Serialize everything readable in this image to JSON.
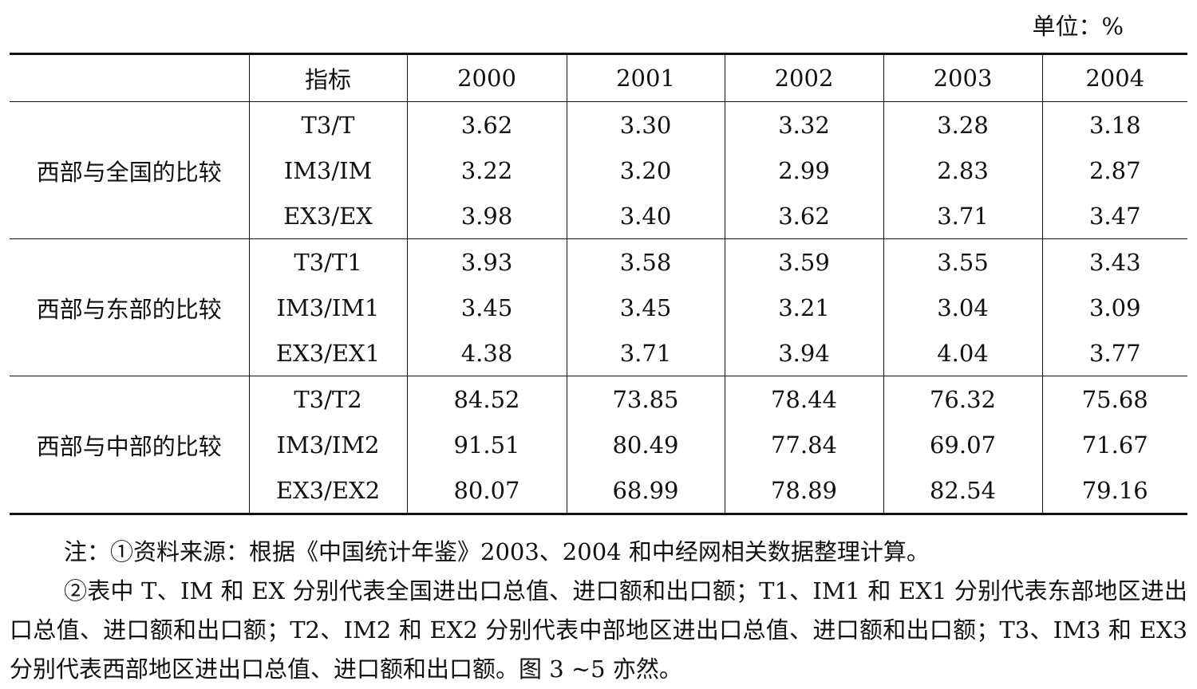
{
  "unit": "单位：%",
  "table": {
    "header": [
      "指标",
      "2000",
      "2001",
      "2002",
      "2003",
      "2004"
    ],
    "groups": [
      {
        "label": "西部与全国的比较",
        "rows": [
          [
            "T3/T",
            "3.62",
            "3.30",
            "3.32",
            "3.28",
            "3.18"
          ],
          [
            "IM3/IM",
            "3.22",
            "3.20",
            "2.99",
            "2.83",
            "2.87"
          ],
          [
            "EX3/EX",
            "3.98",
            "3.40",
            "3.62",
            "3.71",
            "3.47"
          ]
        ]
      },
      {
        "label": "西部与东部的比较",
        "rows": [
          [
            "T3/T1",
            "3.93",
            "3.58",
            "3.59",
            "3.55",
            "3.43"
          ],
          [
            "IM3/IM1",
            "3.45",
            "3.45",
            "3.21",
            "3.04",
            "3.09"
          ],
          [
            "EX3/EX1",
            "4.38",
            "3.71",
            "3.94",
            "4.04",
            "3.77"
          ]
        ]
      },
      {
        "label": "西部与中部的比较",
        "rows": [
          [
            "T3/T2",
            "84.52",
            "73.85",
            "78.44",
            "76.32",
            "75.68"
          ],
          [
            "IM3/IM2",
            "91.51",
            "80.49",
            "77.84",
            "69.07",
            "71.67"
          ],
          [
            "EX3/EX2",
            "80.07",
            "68.99",
            "78.89",
            "82.54",
            "79.16"
          ]
        ]
      }
    ]
  },
  "notes": [
    "注：①资料来源：根据《中国统计年鉴》2003、2004 和中经网相关数据整理计算。",
    "②表中 T、IM 和 EX 分别代表全国进出口总值、进口额和出口额；T1、IM1 和 EX1 分别代表东部地区进出口总值、进口额和出口额；T2、IM2 和 EX2 分别代表中部地区进出口总值、进口额和出口额；T3、IM3 和 EX3 分别代表西部地区进出口总值、进口额和出口额。图 3 ~5 亦然。"
  ]
}
